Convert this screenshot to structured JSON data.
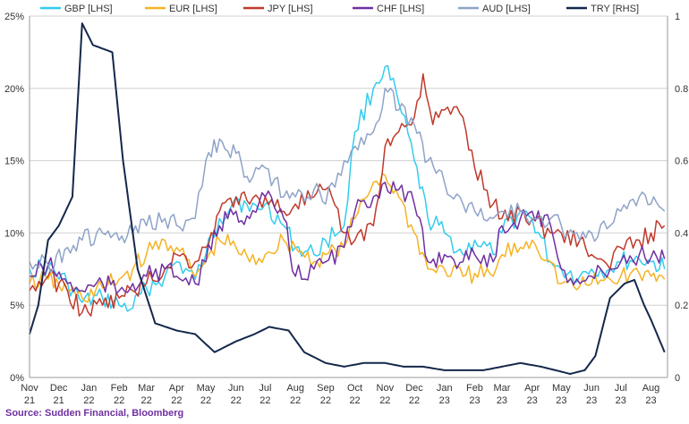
{
  "source": "Source: Sudden Financial, Bloomberg",
  "chart_data": {
    "type": "line",
    "grid": true,
    "legend_position": "top",
    "left_axis": {
      "ticks": [
        "0%",
        "5%",
        "10%",
        "15%",
        "20%",
        "25%"
      ],
      "ylim": [
        0,
        25
      ]
    },
    "right_axis": {
      "ticks": [
        "0",
        "0.2",
        "0.4",
        "0.6",
        "0.8",
        "1"
      ],
      "ylim": [
        0,
        1.0
      ]
    },
    "x_months": [
      "2021-11",
      "2021-12",
      "2022-01",
      "2022-02",
      "2022-03",
      "2022-04",
      "2022-05",
      "2022-06",
      "2022-07",
      "2022-08",
      "2022-09",
      "2022-10",
      "2022-11",
      "2022-12",
      "2023-01",
      "2023-02",
      "2023-03",
      "2023-04",
      "2023-05",
      "2023-06",
      "2023-07",
      "2023-08"
    ],
    "x_tick_labels": [
      [
        "Nov",
        "21"
      ],
      [
        "Dec",
        "21"
      ],
      [
        "Jan",
        "22"
      ],
      [
        "Feb",
        "22"
      ],
      [
        "Mar",
        "22"
      ],
      [
        "Apr",
        "22"
      ],
      [
        "May",
        "22"
      ],
      [
        "Jun",
        "22"
      ],
      [
        "Jul",
        "22"
      ],
      [
        "Aug",
        "22"
      ],
      [
        "Sep",
        "22"
      ],
      [
        "Oct",
        "22"
      ],
      [
        "Nov",
        "22"
      ],
      [
        "Dec",
        "22"
      ],
      [
        "Jan",
        "23"
      ],
      [
        "Feb",
        "23"
      ],
      [
        "Mar",
        "23"
      ],
      [
        "Apr",
        "23"
      ],
      [
        "May",
        "23"
      ],
      [
        "Jun",
        "23"
      ],
      [
        "Jul",
        "23"
      ],
      [
        "Aug",
        "23"
      ]
    ],
    "series": [
      {
        "name": "GBP [LHS]",
        "color": "#33ccee",
        "axis": "left",
        "x": [
          "2021-11-01",
          "2021-11-20",
          "2021-12-10",
          "2021-12-25",
          "2022-01-15",
          "2022-02-01",
          "2022-02-15",
          "2022-03-01",
          "2022-03-20",
          "2022-04-01",
          "2022-04-20",
          "2022-05-01",
          "2022-05-15",
          "2022-06-01",
          "2022-06-15",
          "2022-07-01",
          "2022-07-20",
          "2022-08-01",
          "2022-08-20",
          "2022-09-01",
          "2022-09-20",
          "2022-10-01",
          "2022-10-20",
          "2022-11-01",
          "2022-11-15",
          "2022-12-01",
          "2022-12-15",
          "2023-01-01",
          "2023-01-20",
          "2023-02-01",
          "2023-02-20",
          "2023-03-01",
          "2023-03-20",
          "2023-04-01",
          "2023-04-20",
          "2023-05-01",
          "2023-05-20",
          "2023-06-01",
          "2023-06-20",
          "2023-07-01",
          "2023-07-20",
          "2023-08-01",
          "2023-08-15"
        ],
        "y": [
          7.5,
          7.6,
          6.5,
          5.2,
          5.5,
          5.0,
          4.8,
          6.2,
          7.0,
          8.0,
          6.8,
          8.5,
          11.0,
          12.5,
          11.5,
          12.0,
          10.5,
          9.0,
          8.5,
          9.5,
          10.5,
          17.0,
          20.0,
          21.5,
          19.0,
          15.0,
          11.0,
          10.0,
          8.5,
          9.5,
          8.5,
          10.0,
          11.5,
          11.0,
          8.0,
          7.5,
          7.0,
          7.5,
          7.5,
          8.0,
          8.2,
          8.0,
          7.5
        ]
      },
      {
        "name": "EUR [LHS]",
        "color": "#f5b324",
        "axis": "left",
        "x": [
          "2021-11-01",
          "2021-11-20",
          "2021-12-10",
          "2021-12-25",
          "2022-01-15",
          "2022-02-01",
          "2022-02-15",
          "2022-03-01",
          "2022-03-20",
          "2022-04-01",
          "2022-04-20",
          "2022-05-01",
          "2022-05-15",
          "2022-06-01",
          "2022-06-15",
          "2022-07-01",
          "2022-07-20",
          "2022-08-01",
          "2022-08-20",
          "2022-09-01",
          "2022-09-20",
          "2022-10-01",
          "2022-10-20",
          "2022-11-01",
          "2022-11-15",
          "2022-12-01",
          "2022-12-15",
          "2023-01-01",
          "2023-01-20",
          "2023-02-01",
          "2023-02-20",
          "2023-03-01",
          "2023-03-20",
          "2023-04-01",
          "2023-04-20",
          "2023-05-01",
          "2023-05-20",
          "2023-06-01",
          "2023-06-20",
          "2023-07-01",
          "2023-07-20",
          "2023-08-01",
          "2023-08-15"
        ],
        "y": [
          6.5,
          6.8,
          6.0,
          5.5,
          6.2,
          6.8,
          7.5,
          8.5,
          9.5,
          9.0,
          7.0,
          8.0,
          9.5,
          9.0,
          8.0,
          8.5,
          9.5,
          9.0,
          8.0,
          8.5,
          9.0,
          11.0,
          13.5,
          14.0,
          12.5,
          10.0,
          7.5,
          7.5,
          7.0,
          7.2,
          7.0,
          8.5,
          9.0,
          9.5,
          8.0,
          6.5,
          6.3,
          6.5,
          6.8,
          7.0,
          7.2,
          7.0,
          6.8
        ]
      },
      {
        "name": "JPY [LHS]",
        "color": "#c0392b",
        "axis": "left",
        "x": [
          "2021-11-01",
          "2021-11-20",
          "2021-12-10",
          "2021-12-25",
          "2022-01-15",
          "2022-02-01",
          "2022-02-15",
          "2022-03-01",
          "2022-03-20",
          "2022-04-01",
          "2022-04-20",
          "2022-05-01",
          "2022-05-15",
          "2022-06-01",
          "2022-06-15",
          "2022-07-01",
          "2022-07-20",
          "2022-08-01",
          "2022-08-20",
          "2022-09-01",
          "2022-09-20",
          "2022-10-01",
          "2022-10-20",
          "2022-11-01",
          "2022-11-15",
          "2022-12-01",
          "2022-12-10",
          "2022-12-20",
          "2023-01-01",
          "2023-01-20",
          "2023-02-01",
          "2023-02-20",
          "2023-03-01",
          "2023-03-20",
          "2023-04-01",
          "2023-04-20",
          "2023-05-01",
          "2023-05-20",
          "2023-06-01",
          "2023-06-20",
          "2023-07-01",
          "2023-07-20",
          "2023-08-01",
          "2023-08-15"
        ],
        "y": [
          6.0,
          7.0,
          6.0,
          4.5,
          5.0,
          5.5,
          6.0,
          6.5,
          7.5,
          8.5,
          8.0,
          9.0,
          11.5,
          12.5,
          12.0,
          12.5,
          11.5,
          12.0,
          12.5,
          13.0,
          10.0,
          9.5,
          10.5,
          16.0,
          17.0,
          18.0,
          21.0,
          17.5,
          18.5,
          18.0,
          14.5,
          12.0,
          11.0,
          11.5,
          11.0,
          10.0,
          10.0,
          9.5,
          8.5,
          7.5,
          9.0,
          9.5,
          10.0,
          10.5
        ]
      },
      {
        "name": "CHF [LHS]",
        "color": "#7030a0",
        "axis": "left",
        "x": [
          "2021-11-01",
          "2021-11-20",
          "2021-12-10",
          "2021-12-25",
          "2022-01-15",
          "2022-02-01",
          "2022-02-15",
          "2022-03-01",
          "2022-03-20",
          "2022-04-01",
          "2022-04-20",
          "2022-05-01",
          "2022-05-15",
          "2022-06-01",
          "2022-06-15",
          "2022-07-01",
          "2022-07-20",
          "2022-08-01",
          "2022-08-20",
          "2022-09-01",
          "2022-09-20",
          "2022-10-01",
          "2022-10-20",
          "2022-11-01",
          "2022-11-15",
          "2022-12-01",
          "2022-12-15",
          "2023-01-01",
          "2023-01-20",
          "2023-02-01",
          "2023-02-20",
          "2023-03-01",
          "2023-03-20",
          "2023-04-01",
          "2023-04-20",
          "2023-05-01",
          "2023-05-20",
          "2023-06-01",
          "2023-06-20",
          "2023-07-01",
          "2023-07-20",
          "2023-08-01",
          "2023-08-15"
        ],
        "y": [
          7.0,
          7.8,
          6.5,
          6.0,
          6.5,
          6.0,
          6.5,
          7.0,
          7.5,
          7.0,
          6.5,
          8.0,
          10.5,
          11.5,
          11.0,
          12.5,
          11.0,
          7.0,
          7.5,
          8.0,
          9.0,
          11.5,
          12.5,
          13.5,
          13.0,
          12.0,
          8.0,
          8.5,
          8.0,
          8.5,
          8.0,
          10.5,
          11.0,
          11.5,
          10.5,
          7.5,
          6.5,
          7.0,
          7.5,
          8.0,
          8.5,
          8.3,
          8.2
        ]
      },
      {
        "name": "AUD [LHS]",
        "color": "#8fa3c8",
        "axis": "left",
        "x": [
          "2021-11-01",
          "2021-11-20",
          "2021-12-10",
          "2021-12-25",
          "2022-01-15",
          "2022-02-01",
          "2022-02-15",
          "2022-03-01",
          "2022-03-20",
          "2022-04-01",
          "2022-04-20",
          "2022-05-01",
          "2022-05-15",
          "2022-06-01",
          "2022-06-15",
          "2022-07-01",
          "2022-07-20",
          "2022-08-01",
          "2022-08-20",
          "2022-09-01",
          "2022-09-20",
          "2022-10-01",
          "2022-10-20",
          "2022-11-01",
          "2022-11-15",
          "2022-12-01",
          "2022-12-15",
          "2023-01-01",
          "2023-01-20",
          "2023-02-01",
          "2023-02-20",
          "2023-03-01",
          "2023-03-20",
          "2023-04-01",
          "2023-04-20",
          "2023-05-01",
          "2023-05-20",
          "2023-06-01",
          "2023-06-20",
          "2023-07-01",
          "2023-07-20",
          "2023-08-01",
          "2023-08-15"
        ],
        "y": [
          8.0,
          7.8,
          9.0,
          9.5,
          10.0,
          9.5,
          10.0,
          10.5,
          11.0,
          10.5,
          11.0,
          15.0,
          16.5,
          15.5,
          13.5,
          14.5,
          12.5,
          12.5,
          13.0,
          12.0,
          15.0,
          16.0,
          17.0,
          20.0,
          18.5,
          17.5,
          15.0,
          13.5,
          12.0,
          11.5,
          11.0,
          11.5,
          11.5,
          11.0,
          11.0,
          10.5,
          9.5,
          10.0,
          10.5,
          11.5,
          12.5,
          12.0,
          11.5
        ]
      },
      {
        "name": "TRY [RHS]",
        "color": "#14284b",
        "axis": "right",
        "x": [
          "2021-11-01",
          "2021-11-10",
          "2021-11-20",
          "2021-12-01",
          "2021-12-15",
          "2021-12-25",
          "2022-01-05",
          "2022-01-25",
          "2022-02-05",
          "2022-02-20",
          "2022-03-10",
          "2022-04-01",
          "2022-04-20",
          "2022-05-10",
          "2022-06-01",
          "2022-06-20",
          "2022-07-05",
          "2022-07-25",
          "2022-08-10",
          "2022-09-01",
          "2022-09-20",
          "2022-10-10",
          "2022-11-01",
          "2022-11-20",
          "2022-12-10",
          "2023-01-01",
          "2023-01-20",
          "2023-02-10",
          "2023-03-01",
          "2023-03-20",
          "2023-04-10",
          "2023-04-25",
          "2023-05-10",
          "2023-05-25",
          "2023-06-05",
          "2023-06-20",
          "2023-07-05",
          "2023-07-15",
          "2023-07-25",
          "2023-08-01",
          "2023-08-15"
        ],
        "y": [
          0.12,
          0.2,
          0.38,
          0.42,
          0.5,
          0.98,
          0.92,
          0.9,
          0.6,
          0.3,
          0.15,
          0.13,
          0.12,
          0.07,
          0.1,
          0.12,
          0.14,
          0.13,
          0.07,
          0.04,
          0.03,
          0.04,
          0.04,
          0.03,
          0.03,
          0.02,
          0.02,
          0.02,
          0.03,
          0.04,
          0.03,
          0.02,
          0.01,
          0.02,
          0.06,
          0.22,
          0.26,
          0.27,
          0.2,
          0.16,
          0.07
        ]
      }
    ]
  }
}
